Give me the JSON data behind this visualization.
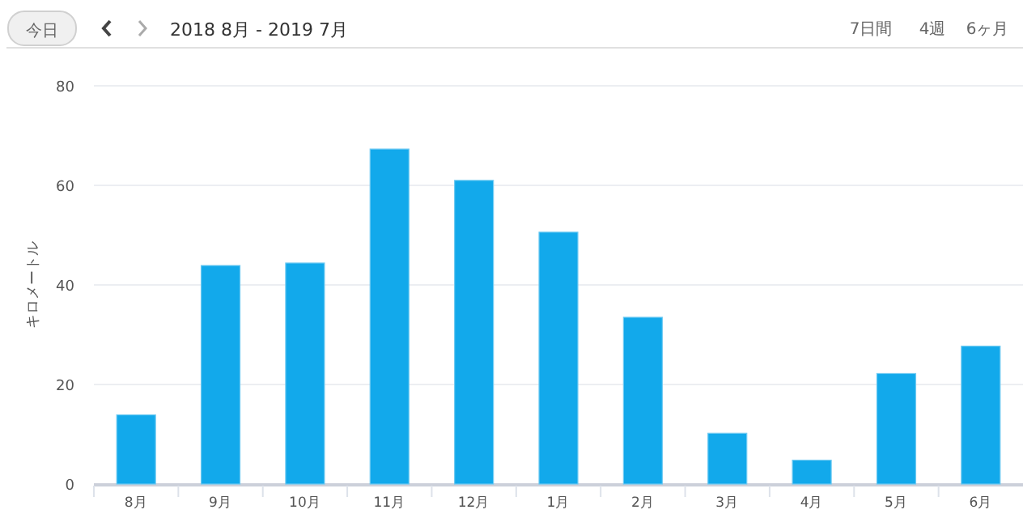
{
  "chart_data": {
    "type": "bar",
    "title": "2018 8月 - 2019 7月",
    "ylabel": "キロメートル",
    "categories": [
      "8月",
      "9月",
      "10月",
      "11月",
      "12月",
      "1月",
      "2月",
      "3月",
      "4月",
      "5月",
      "6月"
    ],
    "values": [
      13.9,
      43.9,
      44.4,
      67.3,
      61.0,
      50.6,
      33.5,
      10.2,
      4.8,
      22.2,
      27.7
    ],
    "color": "#12a9eb",
    "ylim": [
      0,
      80
    ],
    "yticks": [
      0,
      20,
      40,
      60,
      80
    ],
    "grid": "y",
    "annotations": [
      "今日",
      "7日間",
      "4週",
      "6ヶ月"
    ]
  }
}
